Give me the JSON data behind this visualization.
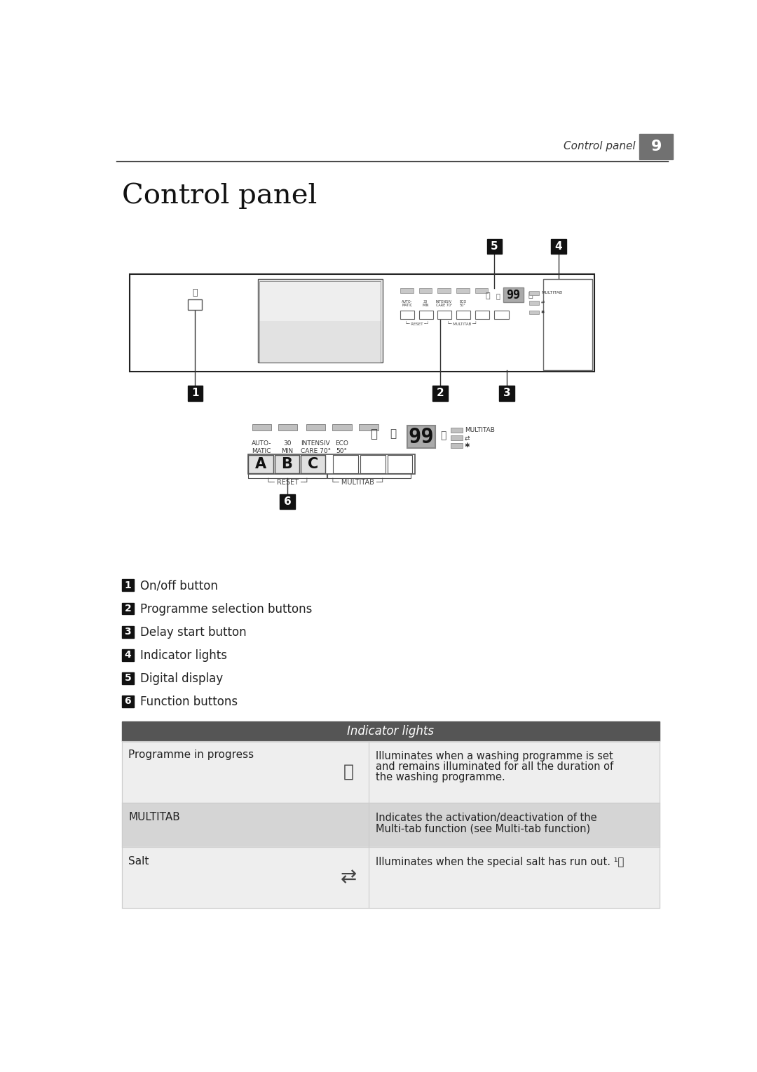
{
  "bg_color": "#ffffff",
  "page_title_text": "Control panel",
  "page_number": "9",
  "page_num_bg": "#717171",
  "section_title": "Control panel",
  "numbered_items": [
    {
      "num": "1",
      "text": "On/off button"
    },
    {
      "num": "2",
      "text": "Programme selection buttons"
    },
    {
      "num": "3",
      "text": "Delay start button"
    },
    {
      "num": "4",
      "text": "Indicator lights"
    },
    {
      "num": "5",
      "text": "Digital display"
    },
    {
      "num": "6",
      "text": "Function buttons"
    }
  ],
  "table_header": "Indicator lights",
  "table_header_bg": "#555555",
  "table_header_text": "#ffffff",
  "table_row1_bg": "#eeeeee",
  "table_row2_bg": "#d5d5d5",
  "table_row3_bg": "#eeeeee",
  "table_rows": [
    {
      "col1": "Programme in progress",
      "col3": "Illuminates when a washing programme is set\nand remains illuminated for all the duration of\nthe washing programme."
    },
    {
      "col1": "MULTITAB",
      "col3": "Indicates the activation/deactivation of the\nMulti-tab function (see Multi-tab function)"
    },
    {
      "col1": "Salt",
      "col3": "Illuminates when the special salt has run out. ¹⧴"
    }
  ]
}
